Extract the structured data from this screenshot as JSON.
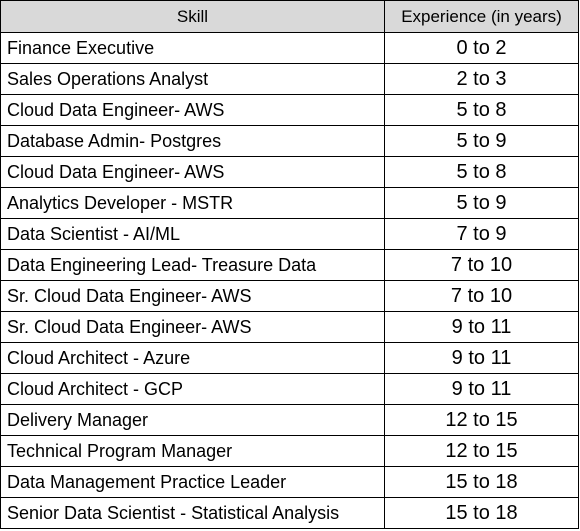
{
  "table": {
    "headers": {
      "skill": "Skill",
      "experience": "Experience (in years)"
    },
    "rows": [
      {
        "skill": "Finance Executive",
        "experience": "0 to 2"
      },
      {
        "skill": "Sales Operations Analyst",
        "experience": "2 to 3"
      },
      {
        "skill": "Cloud Data Engineer- AWS",
        "experience": "5 to 8"
      },
      {
        "skill": "Database Admin- Postgres",
        "experience": "5 to 9"
      },
      {
        "skill": "Cloud Data Engineer- AWS",
        "experience": "5 to 8"
      },
      {
        "skill": "Analytics Developer - MSTR",
        "experience": "5 to 9"
      },
      {
        "skill": "Data Scientist - AI/ML",
        "experience": "7 to 9"
      },
      {
        "skill": "Data Engineering Lead- Treasure Data",
        "experience": "7 to 10"
      },
      {
        "skill": "Sr. Cloud Data Engineer- AWS",
        "experience": "7 to 10"
      },
      {
        "skill": "Sr. Cloud Data Engineer- AWS",
        "experience": "9 to 11"
      },
      {
        "skill": "Cloud Architect - Azure",
        "experience": "9 to 11"
      },
      {
        "skill": "Cloud Architect - GCP",
        "experience": "9 to 11"
      },
      {
        "skill": "Delivery Manager",
        "experience": "12 to 15"
      },
      {
        "skill": "Technical Program Manager",
        "experience": "12 to 15"
      },
      {
        "skill": "Data Management Practice Leader",
        "experience": "15 to 18"
      },
      {
        "skill": "Senior Data Scientist - Statistical Analysis",
        "experience": "15 to 18"
      }
    ]
  },
  "colors": {
    "header_bg": "#d9d9d9",
    "border": "#000000",
    "text": "#000000"
  }
}
